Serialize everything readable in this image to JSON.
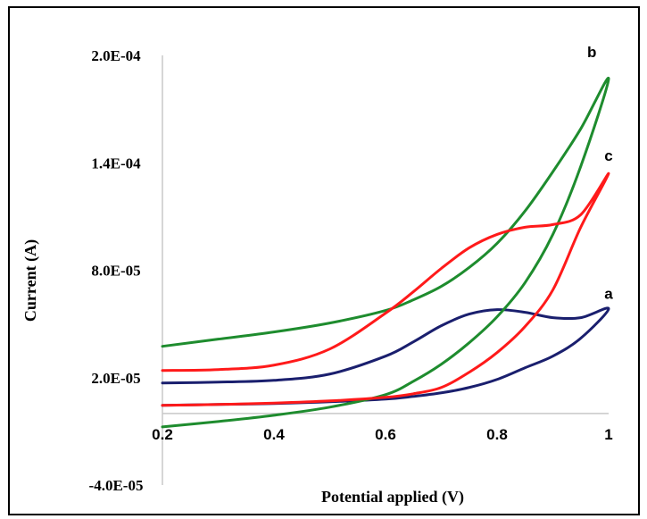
{
  "chart_data": {
    "type": "line",
    "xlabel": "Potential applied (V)",
    "ylabel": "Current (A)",
    "xlim": [
      0.2,
      1.0
    ],
    "ylim": [
      -4e-05,
      0.0002
    ],
    "x_ticks": [
      {
        "value": 0.2,
        "label": "0.2"
      },
      {
        "value": 0.4,
        "label": "0.4"
      },
      {
        "value": 0.6,
        "label": "0.6"
      },
      {
        "value": 0.8,
        "label": "0.8"
      },
      {
        "value": 1.0,
        "label": "1"
      }
    ],
    "y_ticks": [
      {
        "value": 0.0002,
        "label": "2.0E-04"
      },
      {
        "value": 0.00014,
        "label": "1.4E-04"
      },
      {
        "value": 8e-05,
        "label": "8.0E-05"
      },
      {
        "value": 2e-05,
        "label": "2.0E-05"
      },
      {
        "value": -4e-05,
        "label": "-4.0E-05"
      }
    ],
    "grid": false,
    "series": [
      {
        "name": "a",
        "color": "#1a1f6e",
        "x": [
          0.2,
          0.3,
          0.4,
          0.5,
          0.6,
          0.65,
          0.7,
          0.75,
          0.8,
          0.85,
          0.9,
          0.95,
          1.0,
          0.95,
          0.9,
          0.85,
          0.8,
          0.75,
          0.7,
          0.65,
          0.6,
          0.5,
          0.4,
          0.3,
          0.2
        ],
        "y": [
          1.7e-05,
          1.75e-05,
          1.85e-05,
          2.2e-05,
          3.2e-05,
          4e-05,
          4.9e-05,
          5.55e-05,
          5.8e-05,
          5.65e-05,
          5.35e-05,
          5.35e-05,
          5.85e-05,
          4.2e-05,
          3.2e-05,
          2.55e-05,
          1.9e-05,
          1.45e-05,
          1.15e-05,
          9.5e-06,
          8e-06,
          6.5e-06,
          5.5e-06,
          5e-06,
          4.5e-06
        ]
      },
      {
        "name": "b",
        "color": "#1e8c2e",
        "x": [
          0.2,
          0.3,
          0.4,
          0.5,
          0.6,
          0.65,
          0.7,
          0.75,
          0.8,
          0.85,
          0.9,
          0.95,
          1.0,
          0.95,
          0.9,
          0.85,
          0.8,
          0.75,
          0.7,
          0.65,
          0.6,
          0.5,
          0.4,
          0.3,
          0.2
        ],
        "y": [
          3.75e-05,
          4.15e-05,
          4.55e-05,
          5.05e-05,
          5.75e-05,
          6.35e-05,
          7.1e-05,
          8.15e-05,
          9.5e-05,
          0.000113,
          0.000135,
          0.000159,
          0.000187,
          0.000138,
          0.0001,
          7.3e-05,
          5.4e-05,
          3.95e-05,
          2.75e-05,
          1.8e-05,
          1.05e-05,
          3.5e-06,
          -1e-06,
          -4.5e-06,
          -7.5e-06
        ]
      },
      {
        "name": "c",
        "color": "#ff1a1a",
        "x": [
          0.2,
          0.3,
          0.4,
          0.5,
          0.6,
          0.65,
          0.7,
          0.75,
          0.8,
          0.85,
          0.9,
          0.95,
          1.0,
          0.95,
          0.9,
          0.85,
          0.8,
          0.75,
          0.7,
          0.65,
          0.6,
          0.5,
          0.4,
          0.3,
          0.2
        ],
        "y": [
          2.4e-05,
          2.45e-05,
          2.7e-05,
          3.6e-05,
          5.6e-05,
          6.8e-05,
          8.1e-05,
          9.25e-05,
          0.0001,
          0.000104,
          0.0001055,
          0.000111,
          0.000134,
          0.000104,
          6.9e-05,
          4.85e-05,
          3.4e-05,
          2.3e-05,
          1.45e-05,
          1.1e-05,
          9e-06,
          7e-06,
          5.8e-06,
          5e-06,
          4.5e-06
        ]
      }
    ],
    "curve_labels": [
      {
        "text": "a",
        "x": 1.0,
        "y": 6.4e-05
      },
      {
        "text": "b",
        "x": 0.97,
        "y": 0.000199
      },
      {
        "text": "c",
        "x": 1.0,
        "y": 0.000141
      }
    ]
  }
}
